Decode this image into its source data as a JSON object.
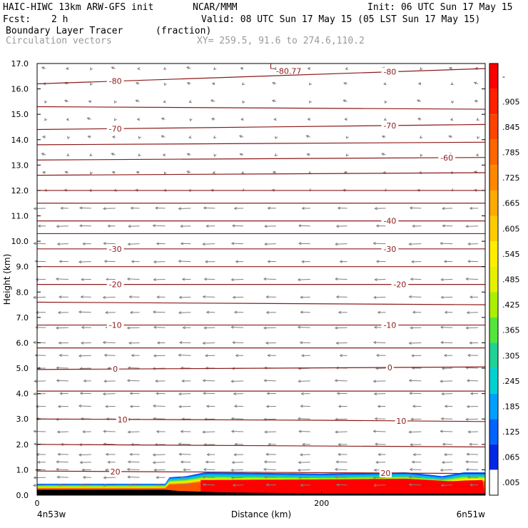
{
  "header": {
    "title": "HAIC-HIWC 13km ARW-GFS init",
    "center": "NCAR/MMM",
    "init": "Init: 06 UTC Sun 17 May 15",
    "fcst_label": "Fcst:",
    "fcst_value": "2 h",
    "valid": "Valid: 08 UTC Sun 17 May 15 (05 LST Sun 17 May 15)",
    "field_name": "Boundary Layer Tracer",
    "field_units": "(fraction)",
    "overlay_name": "Circulation vectors",
    "xy_range": "XY= 259.5, 91.6 to 274.6,110.2"
  },
  "colors": {
    "contour": "#8b1a1a",
    "vector": "#808080",
    "terrain": "#000000"
  },
  "chart_data": {
    "type": "heatmap",
    "title": "Boundary Layer Tracer",
    "xlabel": "Distance (km)",
    "ylabel": "Height (km)",
    "xlim": [
      0,
      315
    ],
    "ylim": [
      0,
      17
    ],
    "x_ticks": [
      {
        "value": 0,
        "label": "0"
      },
      {
        "value": 200,
        "label": "200"
      }
    ],
    "x_endpoints": {
      "left": "4n53w",
      "right": "6n51w"
    },
    "y_ticks": [
      "0.0",
      "1.0",
      "2.0",
      "3.0",
      "4.0",
      "5.0",
      "6.0",
      "7.0",
      "8.0",
      "9.0",
      "10.0",
      "11.0",
      "12.0",
      "13.0",
      "14.0",
      "15.0",
      "16.0",
      "17.0"
    ],
    "colorbar": {
      "labels": [
        "-",
        ".905",
        ".845",
        ".785",
        ".725",
        ".665",
        ".605",
        ".545",
        ".485",
        ".425",
        ".365",
        ".305",
        ".245",
        ".185",
        ".125",
        ".065",
        ".005"
      ],
      "colors": [
        "#ff0000",
        "#ff2200",
        "#ff4400",
        "#ff6600",
        "#ff8800",
        "#ffaa00",
        "#ffcc00",
        "#ffee00",
        "#e6f000",
        "#aaf000",
        "#55e63c",
        "#20d296",
        "#00d2d2",
        "#00a0ff",
        "#0064ff",
        "#0028e6",
        "#ffffff"
      ]
    },
    "tracer_layer": {
      "top_km": [
        [
          0,
          0.45
        ],
        [
          90,
          0.45
        ],
        [
          92,
          0.7
        ],
        [
          105,
          0.75
        ],
        [
          118,
          0.9
        ],
        [
          200,
          0.85
        ],
        [
          260,
          0.9
        ],
        [
          285,
          0.75
        ],
        [
          300,
          0.9
        ],
        [
          315,
          0.9
        ]
      ],
      "red_top_km": [
        [
          115,
          0.6
        ],
        [
          200,
          0.62
        ],
        [
          260,
          0.65
        ],
        [
          290,
          0.55
        ],
        [
          315,
          0.6
        ]
      ],
      "max_label": "-"
    },
    "temperature_contours": [
      {
        "value": -80,
        "points": [
          [
            0,
            16.2
          ],
          [
            315,
            16.8
          ]
        ],
        "labels": [
          {
            "x": 55,
            "text": "-80"
          },
          {
            "x": 248,
            "text": "-80"
          }
        ]
      },
      {
        "value": -75,
        "points": [
          [
            0,
            15.3
          ],
          [
            315,
            15.2
          ]
        ],
        "labels": []
      },
      {
        "value": -70,
        "points": [
          [
            0,
            14.4
          ],
          [
            315,
            14.6
          ]
        ],
        "labels": [
          {
            "x": 55,
            "text": "-70"
          },
          {
            "x": 248,
            "text": "-70"
          }
        ]
      },
      {
        "value": -65,
        "points": [
          [
            0,
            13.8
          ],
          [
            315,
            13.9
          ]
        ],
        "labels": []
      },
      {
        "value": -60,
        "points": [
          [
            0,
            13.2
          ],
          [
            315,
            13.3
          ]
        ],
        "labels": [
          {
            "x": 288,
            "text": "-60"
          }
        ]
      },
      {
        "value": -55,
        "points": [
          [
            0,
            12.6
          ],
          [
            315,
            12.7
          ]
        ],
        "labels": []
      },
      {
        "value": -50,
        "points": [
          [
            0,
            12.0
          ],
          [
            315,
            12.0
          ]
        ],
        "labels": []
      },
      {
        "value": -45,
        "points": [
          [
            0,
            11.5
          ],
          [
            315,
            11.5
          ]
        ],
        "labels": []
      },
      {
        "value": -40,
        "points": [
          [
            0,
            10.8
          ],
          [
            315,
            10.8
          ]
        ],
        "labels": [
          {
            "x": 248,
            "text": "-40"
          }
        ]
      },
      {
        "value": -35,
        "points": [
          [
            0,
            10.3
          ],
          [
            315,
            10.3
          ]
        ],
        "labels": []
      },
      {
        "value": -30,
        "points": [
          [
            0,
            9.7
          ],
          [
            315,
            9.7
          ]
        ],
        "labels": [
          {
            "x": 55,
            "text": "-30"
          },
          {
            "x": 248,
            "text": "-30"
          }
        ]
      },
      {
        "value": -25,
        "points": [
          [
            0,
            9.0
          ],
          [
            315,
            9.0
          ]
        ],
        "labels": []
      },
      {
        "value": -20,
        "points": [
          [
            0,
            8.3
          ],
          [
            315,
            8.3
          ]
        ],
        "labels": [
          {
            "x": 55,
            "text": "-20"
          },
          {
            "x": 255,
            "text": "-20"
          }
        ]
      },
      {
        "value": -15,
        "points": [
          [
            0,
            7.6
          ],
          [
            315,
            7.5
          ]
        ],
        "labels": []
      },
      {
        "value": -10,
        "points": [
          [
            0,
            6.7
          ],
          [
            315,
            6.7
          ]
        ],
        "labels": [
          {
            "x": 55,
            "text": "-10"
          },
          {
            "x": 248,
            "text": "-10"
          }
        ]
      },
      {
        "value": -5,
        "points": [
          [
            0,
            5.8
          ],
          [
            315,
            5.8
          ]
        ],
        "labels": []
      },
      {
        "value": 0,
        "points": [
          [
            0,
            4.95
          ],
          [
            315,
            5.05
          ]
        ],
        "labels": [
          {
            "x": 55,
            "text": "0"
          },
          {
            "x": 248,
            "text": "0"
          }
        ]
      },
      {
        "value": 5,
        "points": [
          [
            0,
            4.1
          ],
          [
            315,
            4.1
          ]
        ],
        "labels": []
      },
      {
        "value": 10,
        "points": [
          [
            0,
            3.0
          ],
          [
            200,
            2.95
          ],
          [
            315,
            2.9
          ]
        ],
        "labels": [
          {
            "x": 60,
            "text": "10"
          },
          {
            "x": 256,
            "text": "10"
          }
        ]
      },
      {
        "value": 15,
        "points": [
          [
            0,
            2.0
          ],
          [
            315,
            1.9
          ]
        ],
        "labels": []
      },
      {
        "value": 20,
        "points": [
          [
            0,
            0.95
          ],
          [
            315,
            0.85
          ]
        ],
        "labels": [
          {
            "x": 55,
            "text": "20"
          },
          {
            "x": 245,
            "text": "20"
          }
        ]
      }
    ],
    "annotations": [
      {
        "text": "L",
        "x": 165,
        "y": 16.9
      },
      {
        "text": "-80.77",
        "x": 168,
        "y": 16.7
      }
    ],
    "vectors": {
      "columns_km": [
        6,
        22,
        38,
        55,
        72,
        90,
        108,
        125,
        145,
        168,
        192,
        218,
        245,
        270,
        292,
        310
      ],
      "levels_km": [
        0.4,
        0.7,
        1.0,
        1.3,
        1.6,
        2.0,
        2.5,
        3.0,
        3.5,
        4.0,
        4.5,
        5.0,
        5.5,
        6.0,
        6.6,
        7.2,
        7.8,
        8.5,
        9.2,
        9.9,
        10.6,
        11.3,
        12.0,
        12.7,
        13.4,
        14.1,
        14.8,
        15.5,
        16.2,
        16.8
      ],
      "u_component": "westward below 12 km, weak and variable above"
    },
    "terrain_km": [
      [
        0,
        0.2
      ],
      [
        90,
        0.2
      ],
      [
        100,
        0.15
      ],
      [
        130,
        0.1
      ],
      [
        200,
        0.05
      ],
      [
        315,
        0.05
      ]
    ]
  }
}
